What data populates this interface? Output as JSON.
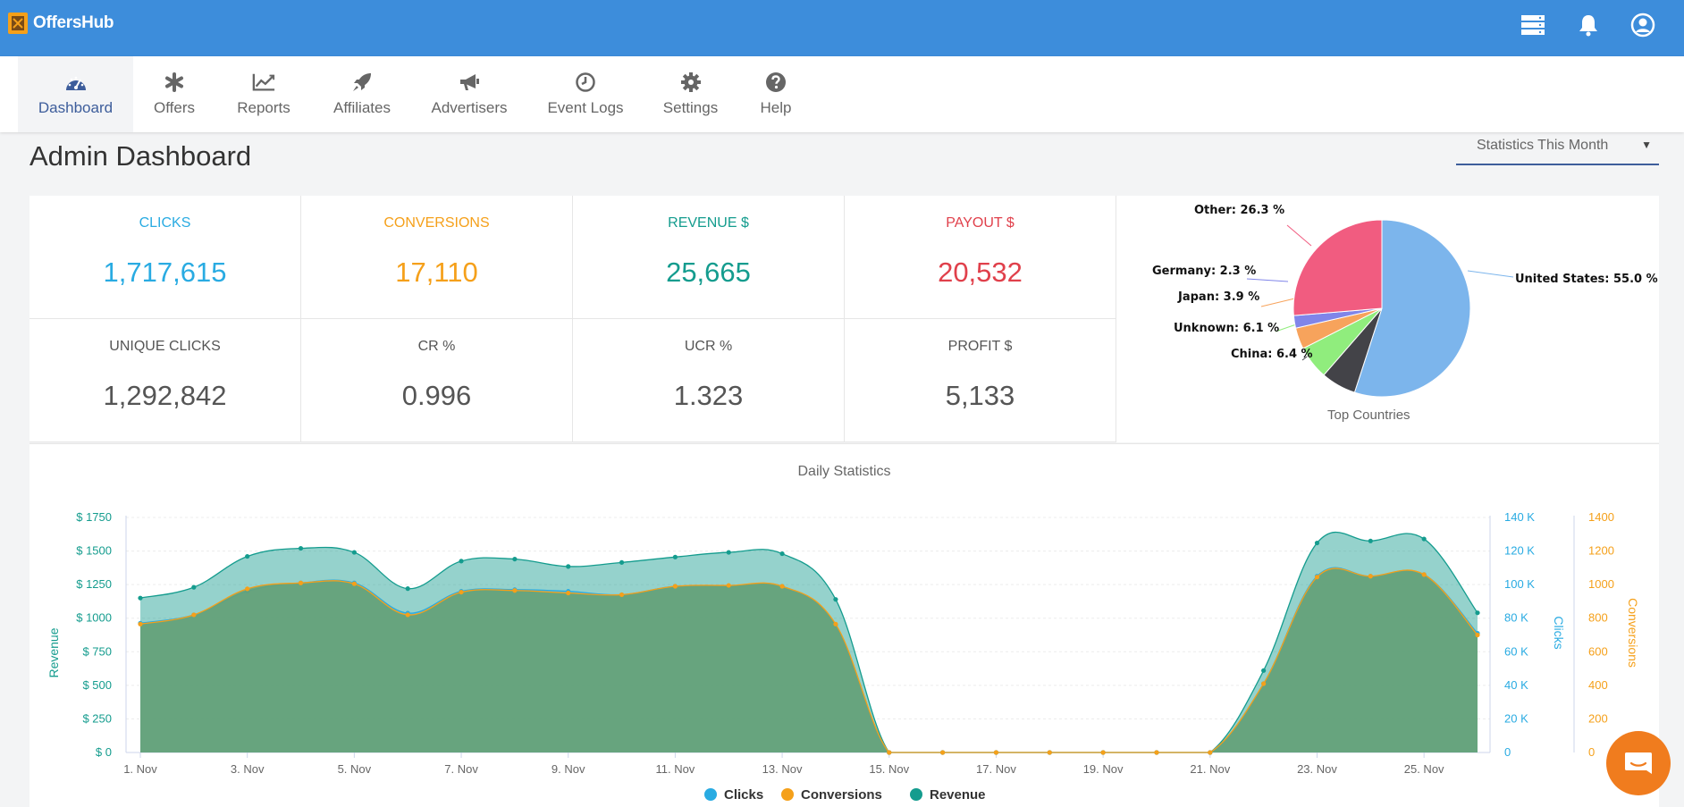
{
  "app": {
    "name": "OffersHub"
  },
  "nav": [
    {
      "label": "Dashboard",
      "icon": "dashboard-icon",
      "active": true
    },
    {
      "label": "Offers",
      "icon": "asterisk-icon"
    },
    {
      "label": "Reports",
      "icon": "line-chart-icon"
    },
    {
      "label": "Affiliates",
      "icon": "rocket-icon"
    },
    {
      "label": "Advertisers",
      "icon": "bullhorn-icon"
    },
    {
      "label": "Event Logs",
      "icon": "clock-icon"
    },
    {
      "label": "Settings",
      "icon": "gear-icon"
    },
    {
      "label": "Help",
      "icon": "question-icon"
    }
  ],
  "top_icons": [
    "server-icon",
    "bell-icon",
    "user-circle-icon"
  ],
  "page": {
    "title": "Admin Dashboard"
  },
  "period_select": {
    "value": "Statistics This Month"
  },
  "stats": [
    {
      "label": "CLICKS",
      "value": "1,717,615",
      "color": "#29abe2"
    },
    {
      "label": "CONVERSIONS",
      "value": "17,110",
      "color": "#f5a01a"
    },
    {
      "label": "REVENUE $",
      "value": "25,665",
      "color": "#149c8e"
    },
    {
      "label": "PAYOUT $",
      "value": "20,532",
      "color": "#e0404b"
    },
    {
      "label": "UNIQUE CLICKS",
      "value": "1,292,842",
      "color": "#555555"
    },
    {
      "label": "CR %",
      "value": "0.996",
      "color": "#555555"
    },
    {
      "label": "UCR %",
      "value": "1.323",
      "color": "#555555"
    },
    {
      "label": "PROFIT $",
      "value": "5,133",
      "color": "#555555"
    }
  ],
  "chart_data": [
    {
      "type": "pie",
      "title": "Top Countries",
      "slices": [
        {
          "label": "United States: 55.0 %",
          "value": 55.0,
          "color": "#7cb5ec"
        },
        {
          "label": "China: 6.4 %",
          "value": 6.4,
          "color": "#434348"
        },
        {
          "label": "Unknown: 6.1 %",
          "value": 6.1,
          "color": "#90ed7d"
        },
        {
          "label": "Japan: 3.9 %",
          "value": 3.9,
          "color": "#f7a35c"
        },
        {
          "label": "Germany: 2.3 %",
          "value": 2.3,
          "color": "#8085e9"
        },
        {
          "label": "Other: 26.3 %",
          "value": 26.3,
          "color": "#f15c80"
        }
      ]
    },
    {
      "type": "area",
      "title": "Daily Statistics",
      "x": [
        "1. Nov",
        "2. Nov",
        "3. Nov",
        "4. Nov",
        "5. Nov",
        "6. Nov",
        "7. Nov",
        "8. Nov",
        "9. Nov",
        "10. Nov",
        "11. Nov",
        "12. Nov",
        "13. Nov",
        "14. Nov",
        "15. Nov",
        "16. Nov",
        "17. Nov",
        "18. Nov",
        "19. Nov",
        "20. Nov",
        "21. Nov",
        "22. Nov",
        "23. Nov",
        "24. Nov",
        "25. Nov",
        "26. Nov"
      ],
      "x_tick_labels": [
        "1. Nov",
        "3. Nov",
        "5. Nov",
        "7. Nov",
        "9. Nov",
        "11. Nov",
        "13. Nov",
        "15. Nov",
        "17. Nov",
        "19. Nov",
        "21. Nov",
        "23. Nov",
        "25. Nov"
      ],
      "axes": {
        "revenue": {
          "label": "Revenue",
          "range": [
            0,
            1750
          ],
          "ticks": [
            "$ 0",
            "$ 250",
            "$ 500",
            "$ 750",
            "$ 1000",
            "$ 1250",
            "$ 1500",
            "$ 1750"
          ],
          "color": "#149c8e"
        },
        "clicks": {
          "label": "Clicks",
          "range": [
            0,
            140000
          ],
          "ticks": [
            "0",
            "20 K",
            "40 K",
            "60 K",
            "80 K",
            "100 K",
            "120 K",
            "140 K"
          ],
          "color": "#29abe2"
        },
        "conversions": {
          "label": "Conversions",
          "range": [
            0,
            1400
          ],
          "ticks": [
            "0",
            "200",
            "400",
            "600",
            "800",
            "1000",
            "1200",
            "1400"
          ],
          "color": "#f5a01a"
        }
      },
      "series": [
        {
          "name": "Clicks",
          "axis": "clicks",
          "color": "#29abe2",
          "values": [
            77000,
            82000,
            96000,
            101000,
            101000,
            83000,
            96000,
            97000,
            96000,
            94000,
            99000,
            99000,
            99000,
            76000,
            0,
            0,
            0,
            0,
            0,
            0,
            0,
            41000,
            105000,
            105000,
            106000,
            71000
          ]
        },
        {
          "name": "Conversions",
          "axis": "conversions",
          "color": "#f5a01a",
          "values": [
            765,
            820,
            975,
            1010,
            1005,
            820,
            955,
            965,
            950,
            940,
            990,
            995,
            990,
            765,
            0,
            0,
            0,
            0,
            0,
            0,
            0,
            410,
            1045,
            1050,
            1060,
            700
          ]
        },
        {
          "name": "Revenue",
          "axis": "revenue",
          "color": "#149c8e",
          "values": [
            1150,
            1230,
            1460,
            1520,
            1490,
            1220,
            1425,
            1440,
            1385,
            1415,
            1455,
            1490,
            1480,
            1140,
            0,
            0,
            0,
            0,
            0,
            0,
            0,
            610,
            1560,
            1575,
            1590,
            1040
          ]
        }
      ],
      "legend": "bottom-center"
    }
  ]
}
